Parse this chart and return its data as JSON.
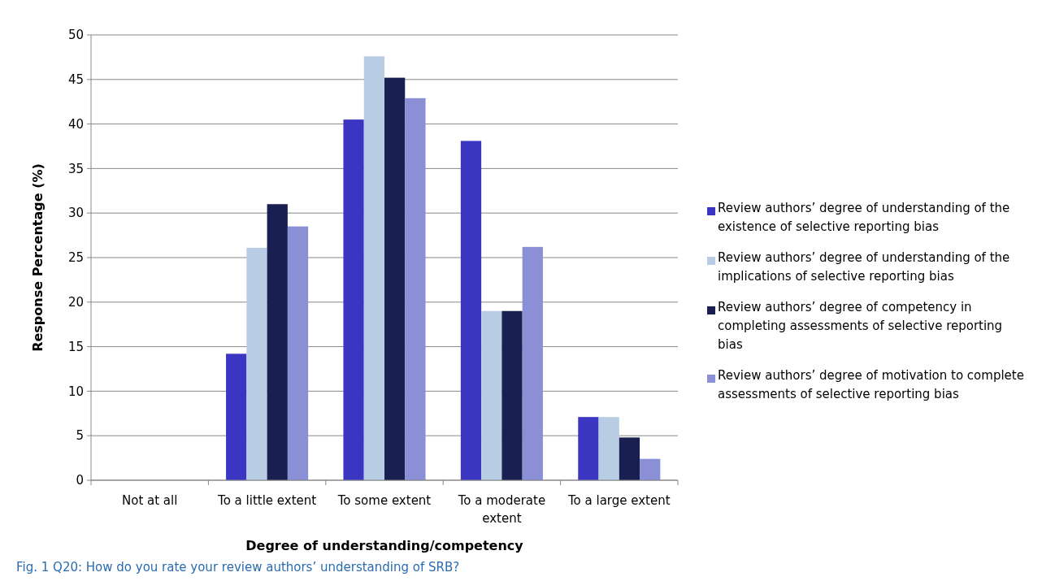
{
  "chart_data": {
    "type": "bar",
    "categories": [
      "Not at all",
      "To a little extent",
      "To some extent",
      "To a moderate extent",
      "To a large extent"
    ],
    "series": [
      {
        "name": "Review authors’ degree of understanding of the existence of selective reporting bias",
        "color": "#3a36c2",
        "values": [
          0,
          14.2,
          40.5,
          38.1,
          7.1
        ]
      },
      {
        "name": "Review authors’ degree of understanding of the implications of selective reporting bias",
        "color": "#b8cce4",
        "values": [
          0,
          26.1,
          47.6,
          19,
          7.1
        ]
      },
      {
        "name": "Review authors’ degree of competency in completing assessments of selective reporting bias",
        "color": "#1a1f52",
        "values": [
          0,
          31,
          45.2,
          19,
          4.8
        ]
      },
      {
        "name": "Review authors’ degree of motivation to complete assessments of selective reporting bias",
        "color": "#8a8fd6",
        "values": [
          0,
          28.5,
          42.9,
          26.2,
          2.4
        ]
      }
    ],
    "xlabel": "Degree of understanding/competency",
    "ylabel": "Response Percentage (%)",
    "ylim": [
      0,
      50
    ],
    "yticks": [
      0,
      5,
      10,
      15,
      20,
      25,
      30,
      35,
      40,
      45,
      50
    ],
    "grid": "y",
    "legend": "right",
    "annotations": [
      "Fig. 1 Q20: How do you rate your review authors’ understanding of SRB?"
    ]
  }
}
